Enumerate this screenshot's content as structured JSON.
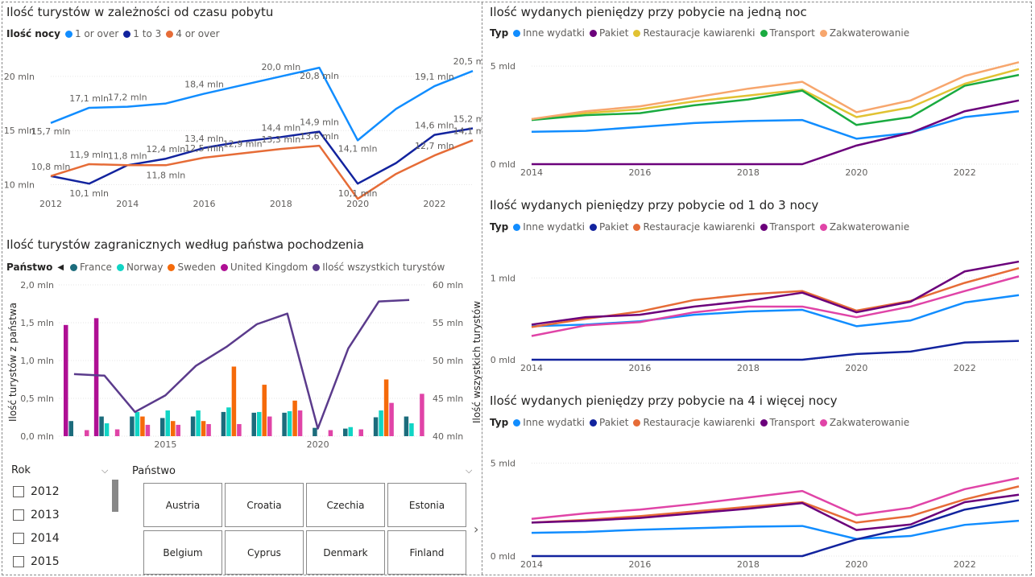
{
  "panels": {
    "p1": {
      "title": "Ilość turystów w zależności od czasu pobytu",
      "legend_title": "Ilość nocy",
      "legend": [
        "1 or over",
        "1 to 3",
        "4 or over"
      ]
    },
    "p2": {
      "title": "Ilość turystów zagranicznych według państwa pochodzenia",
      "legend_title": "Państwo",
      "legend": [
        "France",
        "Norway",
        "Sweden",
        "United Kingdom",
        "Ilość wszystkich turystów"
      ],
      "ylabel_left": "Ilość turystów z państwa",
      "ylabel_right": "Ilość wszystkich turystów"
    },
    "p3": {
      "title": "Ilość wydanych pieniędzy przy pobycie na jedną noc",
      "legend_title": "Typ",
      "legend": [
        "Inne wydatki",
        "Pakiet",
        "Restauracje kawiarenki",
        "Transport",
        "Zakwaterowanie"
      ]
    },
    "p4": {
      "title": "Ilość wydanych pieniędzy przy pobycie od 1 do 3 nocy",
      "legend_title": "Typ",
      "legend": [
        "Inne wydatki",
        "Pakiet",
        "Restauracje kawiarenki",
        "Transport",
        "Zakwaterowanie"
      ]
    },
    "p5": {
      "title": "Ilość wydanych pieniędzy przy pobycie na 4 i więcej nocy",
      "legend_title": "Typ",
      "legend": [
        "Inne wydatki",
        "Pakiet",
        "Restauracje kawiarenki",
        "Transport",
        "Zakwaterowanie"
      ]
    }
  },
  "slicers": {
    "rok": {
      "label": "Rok",
      "items": [
        "2012",
        "2013",
        "2014",
        "2015"
      ]
    },
    "panstwo": {
      "label": "Państwo",
      "tiles": [
        "Austria",
        "Croatia",
        "Czechia",
        "Estonia",
        "Belgium",
        "Cyprus",
        "Denmark",
        "Finland"
      ]
    }
  },
  "chart_data": [
    {
      "type": "line",
      "title": "Ilość turystów w zależności od czasu pobytu",
      "x": [
        2012,
        2013,
        2014,
        2015,
        2016,
        2017,
        2018,
        2019,
        2020,
        2021,
        2022,
        2023
      ],
      "xticks": [
        "2012",
        "2014",
        "2016",
        "2018",
        "2020",
        "2022"
      ],
      "yticks": [
        "10 mln",
        "15 mln",
        "20 mln"
      ],
      "ylim": [
        9,
        22
      ],
      "series": [
        {
          "name": "1 or over",
          "color": "#118DFF",
          "values": [
            15.7,
            17.1,
            17.2,
            17.5,
            18.4,
            19.2,
            20.0,
            20.8,
            14.1,
            17.0,
            19.1,
            20.5
          ],
          "labels": [
            "15,7 mln",
            "17,1 mln",
            "17,2 mln",
            "",
            "18,4 mln",
            "",
            "20,0 mln",
            "20,8 mln",
            "14,1 mln",
            "",
            "19,1 mln",
            "20,5 mln"
          ]
        },
        {
          "name": "1 to 3",
          "color": "#12239E",
          "values": [
            10.8,
            10.1,
            11.8,
            12.4,
            13.4,
            14.0,
            14.4,
            14.9,
            10.1,
            12.0,
            14.6,
            15.2
          ],
          "labels": [
            "",
            "10,1 mln",
            "11,8 mln",
            "12,4 mln",
            "13,4 mln",
            "",
            "14,4 mln",
            "14,9 mln",
            "10,1 mln",
            "",
            "14,6 mln",
            "15,2 mln"
          ]
        },
        {
          "name": "4 or over",
          "color": "#E66C37",
          "values": [
            10.8,
            11.9,
            11.8,
            11.8,
            12.5,
            12.9,
            13.3,
            13.6,
            8.7,
            11.0,
            12.7,
            14.1
          ],
          "labels": [
            "10,8 mln",
            "11,9 mln",
            "",
            "11,8 mln",
            "12,5 mln",
            "12,9 mln",
            "13,3 mln",
            "13,6 mln",
            "",
            "",
            "12,7 mln",
            "14,1 mln"
          ]
        }
      ]
    },
    {
      "type": "bar",
      "title": "Ilość turystów zagranicznych według państwa pochodzenia",
      "x": [
        2012,
        2013,
        2014,
        2015,
        2016,
        2017,
        2018,
        2019,
        2020,
        2021,
        2022,
        2023
      ],
      "xticks": [
        "2015",
        "2020"
      ],
      "yticks_left": [
        "0,0 mln",
        "0,5 mln",
        "1,0 mln",
        "1,5 mln",
        "2,0 mln"
      ],
      "yticks_right": [
        "40 mln",
        "45 mln",
        "50 mln",
        "55 mln",
        "60 mln"
      ],
      "ylim_left": [
        0,
        2.0
      ],
      "ylim_right": [
        40,
        60
      ],
      "series": [
        {
          "name": "United Kingdom",
          "color": "#AF0F94",
          "values": [
            1.47,
            1.56,
            0,
            0,
            0,
            0,
            0,
            0,
            0,
            0,
            0,
            0
          ]
        },
        {
          "name": "France",
          "color": "#1C6C7C",
          "values": [
            0.2,
            0.26,
            0.26,
            0.24,
            0.26,
            0.32,
            0.31,
            0.31,
            0.11,
            0.1,
            0.25,
            0.26
          ]
        },
        {
          "name": "Norway",
          "color": "#10D5C5",
          "values": [
            0,
            0.17,
            0.32,
            0.34,
            0.34,
            0.38,
            0.32,
            0.33,
            0,
            0.12,
            0.34,
            0.17
          ]
        },
        {
          "name": "Sweden",
          "color": "#F56A0A",
          "values": [
            0,
            0,
            0.26,
            0.2,
            0.2,
            0.92,
            0.68,
            0.47,
            0,
            0,
            0.75,
            0
          ]
        },
        {
          "name": "United Kingdom (2)",
          "color": "#E044A7",
          "values": [
            0.08,
            0.09,
            0.15,
            0.15,
            0.16,
            0.16,
            0.26,
            0.34,
            0.08,
            0.09,
            0.44,
            0.56
          ]
        }
      ],
      "line": {
        "name": "Ilość wszystkich turystów",
        "color": "#5B3B8C",
        "values": [
          48.2,
          48.0,
          43.2,
          45.4,
          49.3,
          51.8,
          54.8,
          56.2,
          41.0,
          51.6,
          57.8,
          58.0
        ]
      }
    },
    {
      "type": "line",
      "title": "Ilość wydanych pieniędzy przy pobycie na jedną noc",
      "x": [
        2014,
        2015,
        2016,
        2017,
        2018,
        2019,
        2020,
        2021,
        2022,
        2023
      ],
      "xticks": [
        "2014",
        "2016",
        "2018",
        "2020",
        "2022"
      ],
      "yticks": [
        "0 mld",
        "5 mld"
      ],
      "ylim": [
        0,
        5.5
      ],
      "series": [
        {
          "name": "Inne wydatki",
          "color": "#118DFF",
          "values": [
            1.65,
            1.7,
            1.9,
            2.1,
            2.2,
            2.25,
            1.3,
            1.6,
            2.4,
            2.7
          ]
        },
        {
          "name": "Pakiet",
          "color": "#6B007B",
          "values": [
            0,
            0,
            0,
            0,
            0,
            0,
            0.95,
            1.6,
            2.7,
            3.25
          ]
        },
        {
          "name": "Restauracje kawiarenki",
          "color": "#E1C233",
          "values": [
            2.3,
            2.6,
            2.8,
            3.2,
            3.5,
            3.8,
            2.4,
            2.9,
            4.1,
            4.85
          ]
        },
        {
          "name": "Transport",
          "color": "#1AAB40",
          "values": [
            2.25,
            2.5,
            2.6,
            3.0,
            3.3,
            3.75,
            2.0,
            2.4,
            4.0,
            4.55
          ]
        },
        {
          "name": "Zakwaterowanie",
          "color": "#F7A66D",
          "values": [
            2.3,
            2.7,
            2.95,
            3.4,
            3.85,
            4.2,
            2.65,
            3.25,
            4.5,
            5.2
          ]
        }
      ]
    },
    {
      "type": "line",
      "title": "Ilość wydanych pieniędzy przy pobycie od 1 do 3 nocy",
      "x": [
        2014,
        2015,
        2016,
        2017,
        2018,
        2019,
        2020,
        2021,
        2022,
        2023
      ],
      "xticks": [
        "2014",
        "2016",
        "2018",
        "2020",
        "2022"
      ],
      "yticks": [
        "0 mld",
        "1 mld"
      ],
      "ylim": [
        0,
        1.25
      ],
      "series": [
        {
          "name": "Inne wydatki",
          "color": "#118DFF",
          "values": [
            0.41,
            0.43,
            0.47,
            0.55,
            0.59,
            0.61,
            0.41,
            0.48,
            0.7,
            0.79
          ]
        },
        {
          "name": "Pakiet",
          "color": "#12239E",
          "values": [
            0,
            0,
            0,
            0,
            0,
            0,
            0.07,
            0.1,
            0.21,
            0.23
          ]
        },
        {
          "name": "Restauracje kawiarenki",
          "color": "#E66C37",
          "values": [
            0.4,
            0.5,
            0.59,
            0.73,
            0.8,
            0.84,
            0.6,
            0.72,
            0.94,
            1.12
          ]
        },
        {
          "name": "Transport",
          "color": "#6B007B",
          "values": [
            0.43,
            0.52,
            0.55,
            0.65,
            0.72,
            0.82,
            0.58,
            0.71,
            1.08,
            1.2
          ]
        },
        {
          "name": "Zakwaterowanie",
          "color": "#E044A7",
          "values": [
            0.29,
            0.42,
            0.46,
            0.58,
            0.65,
            0.65,
            0.52,
            0.65,
            0.84,
            1.02
          ]
        }
      ]
    },
    {
      "type": "line",
      "title": "Ilość wydanych pieniędzy przy pobycie na 4 i więcej nocy",
      "x": [
        2014,
        2015,
        2016,
        2017,
        2018,
        2019,
        2020,
        2021,
        2022,
        2023
      ],
      "xticks": [
        "2014",
        "2016",
        "2018",
        "2020",
        "2022"
      ],
      "yticks": [
        "0 mld",
        "5 mld"
      ],
      "ylim": [
        0,
        5.8
      ],
      "series": [
        {
          "name": "Inne wydatki",
          "color": "#118DFF",
          "values": [
            1.25,
            1.3,
            1.42,
            1.5,
            1.58,
            1.62,
            0.92,
            1.08,
            1.68,
            1.9
          ]
        },
        {
          "name": "Pakiet",
          "color": "#12239E",
          "values": [
            0,
            0,
            0,
            0,
            0,
            0,
            0.9,
            1.55,
            2.5,
            3.0
          ]
        },
        {
          "name": "Restauracje kawiarenki",
          "color": "#E66C37",
          "values": [
            1.8,
            1.95,
            2.15,
            2.4,
            2.65,
            2.9,
            1.8,
            2.15,
            3.05,
            3.75
          ]
        },
        {
          "name": "Transport",
          "color": "#6B007B",
          "values": [
            1.8,
            1.9,
            2.05,
            2.3,
            2.55,
            2.85,
            1.4,
            1.7,
            2.9,
            3.3
          ]
        },
        {
          "name": "Zakwaterowanie",
          "color": "#E044A7",
          "values": [
            2.0,
            2.3,
            2.5,
            2.8,
            3.15,
            3.5,
            2.2,
            2.6,
            3.6,
            4.2
          ]
        }
      ]
    }
  ]
}
